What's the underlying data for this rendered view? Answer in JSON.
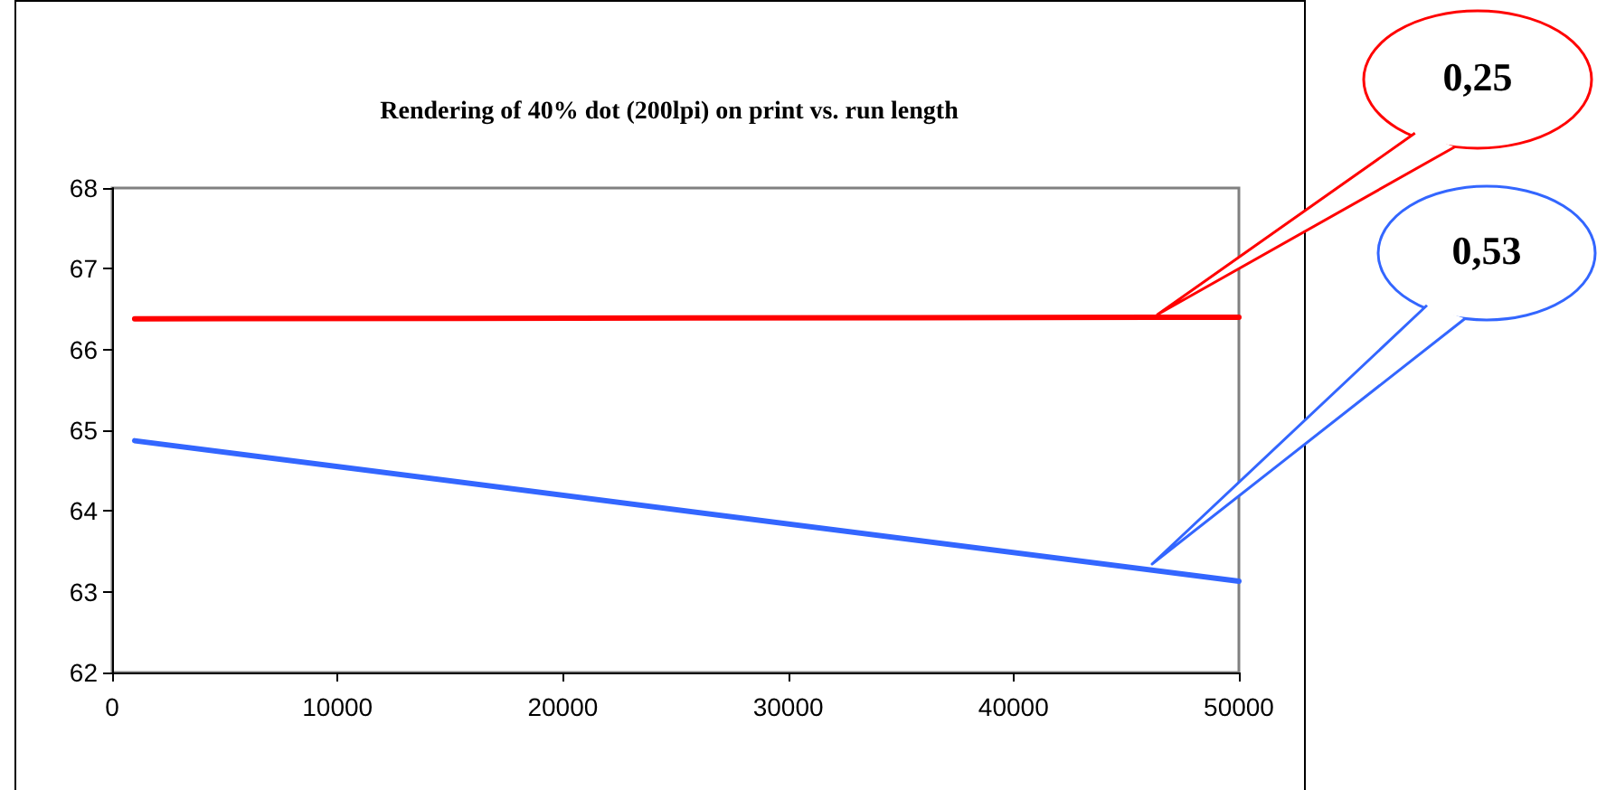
{
  "chart_data": {
    "type": "line",
    "title": "Rendering of 40% dot (200lpi) on print vs. run length",
    "x": [
      1000,
      50000
    ],
    "series": [
      {
        "color": "#ff0000",
        "values": [
          66.38,
          66.4
        ]
      },
      {
        "color": "#3366ff",
        "values": [
          64.87,
          63.13
        ]
      }
    ],
    "xlim": [
      0,
      50000
    ],
    "xticks": [
      0,
      10000,
      20000,
      30000,
      40000,
      50000
    ],
    "ylim": [
      62,
      68
    ],
    "yticks": [
      62,
      63,
      64,
      65,
      66,
      67,
      68
    ],
    "grid": false,
    "marker": "none",
    "line_style": "solid",
    "annotations": [
      "0,25",
      "0,53"
    ]
  }
}
